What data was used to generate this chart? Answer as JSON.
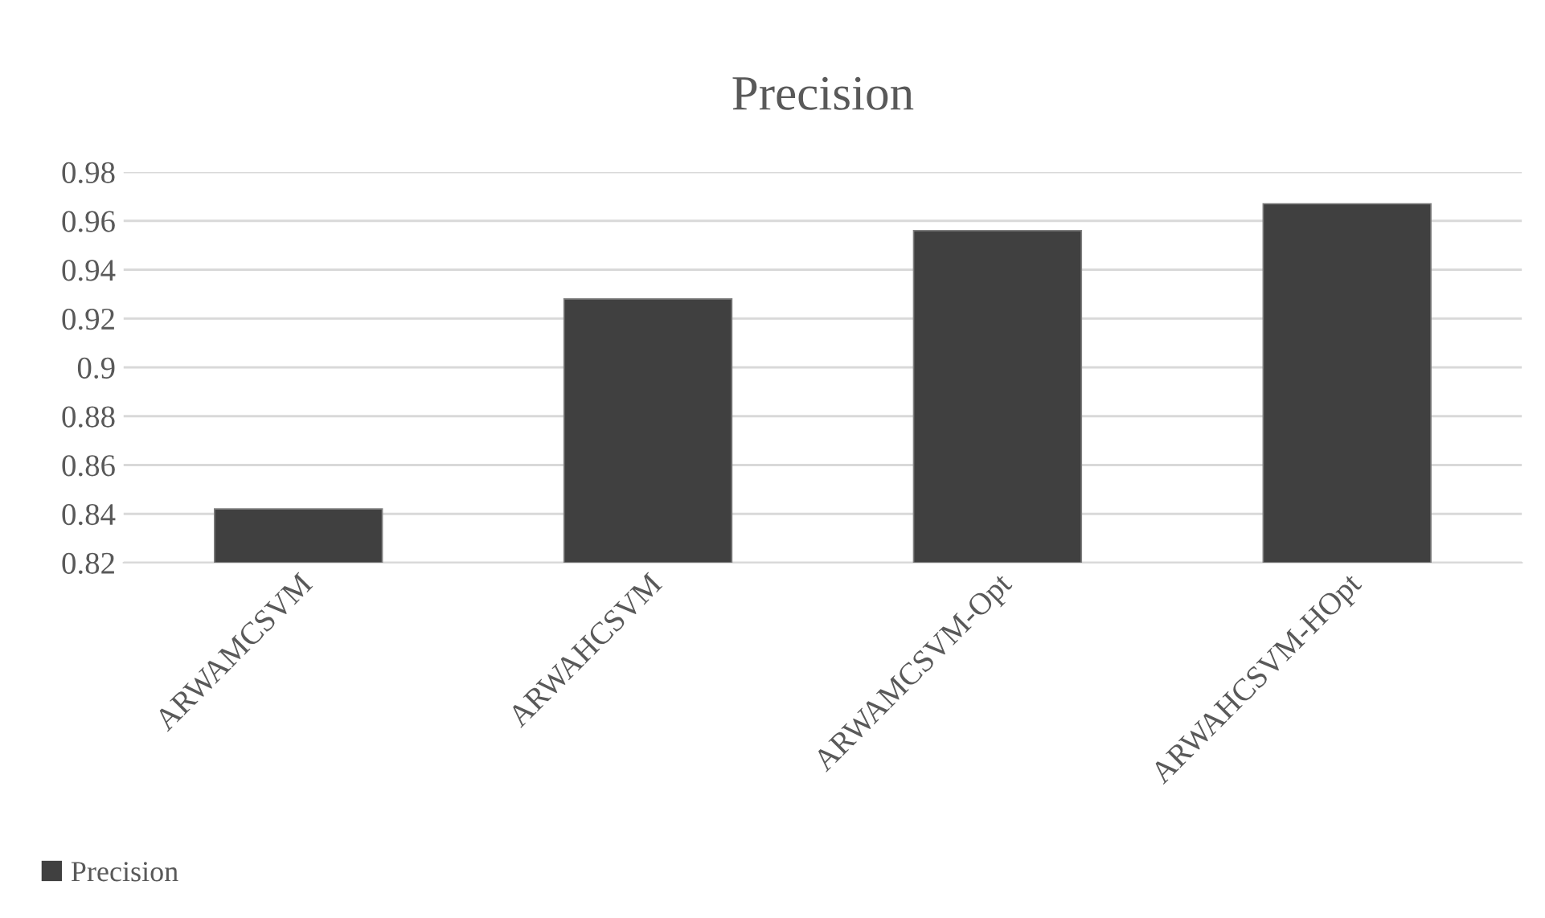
{
  "chart_data": {
    "type": "bar",
    "title": "Precision",
    "categories": [
      "ARWAMCSVM",
      "ARWAHCSVM",
      "ARWAMCSVM-Opt",
      "ARWAHCSVM-HOpt"
    ],
    "series": [
      {
        "name": "Precision",
        "color": "#404040",
        "values": [
          0.842,
          0.928,
          0.956,
          0.967
        ]
      }
    ],
    "ylim": [
      0.82,
      0.98
    ],
    "yticks": [
      0.82,
      0.84,
      0.86,
      0.88,
      0.9,
      0.92,
      0.94,
      0.96,
      0.98
    ],
    "grid": "y",
    "legend": "bottom left"
  }
}
